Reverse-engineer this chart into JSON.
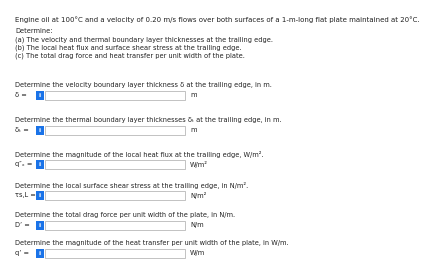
{
  "title_text": "Engine oil at 100°C and a velocity of 0.20 m/s flows over both surfaces of a 1-m-long flat plate maintained at 20°C.",
  "determine_label": "Determine:",
  "items_intro": [
    "(a) The velocity and thermal boundary layer thicknesses at the trailing edge.",
    "(b) The local heat flux and surface shear stress at the trailing edge.",
    "(c) The total drag force and heat transfer per unit width of the plate."
  ],
  "questions": [
    {
      "prompt": "Determine the velocity boundary layer thickness δ at the trailing edge, in m.",
      "label": "δ =",
      "unit": "m"
    },
    {
      "prompt": "Determine the thermal boundary layer thicknesses δₜ at the trailing edge, in m.",
      "label": "δₜ =",
      "unit": "m"
    },
    {
      "prompt": "Determine the magnitude of the local heat flux at the trailing edge, W/m².",
      "label": "q″ₓ =",
      "unit": "W/m²"
    },
    {
      "prompt": "Determine the local surface shear stress at the trailing edge, in N/m².",
      "label": "τs,L =",
      "unit": "N/m²"
    },
    {
      "prompt": "Determine the total drag force per unit width of the plate, in N/m.",
      "label": "D’ =",
      "unit": "N/m"
    },
    {
      "prompt": "Determine the magnitude of the heat transfer per unit width of the plate, in W/m.",
      "label": "q’ =",
      "unit": "W/m"
    }
  ],
  "bg_color": "#ffffff",
  "text_color": "#222222",
  "box_color": "#1a73e8",
  "font_size_title": 5.0,
  "font_size_body": 4.8,
  "font_size_label": 5.0
}
